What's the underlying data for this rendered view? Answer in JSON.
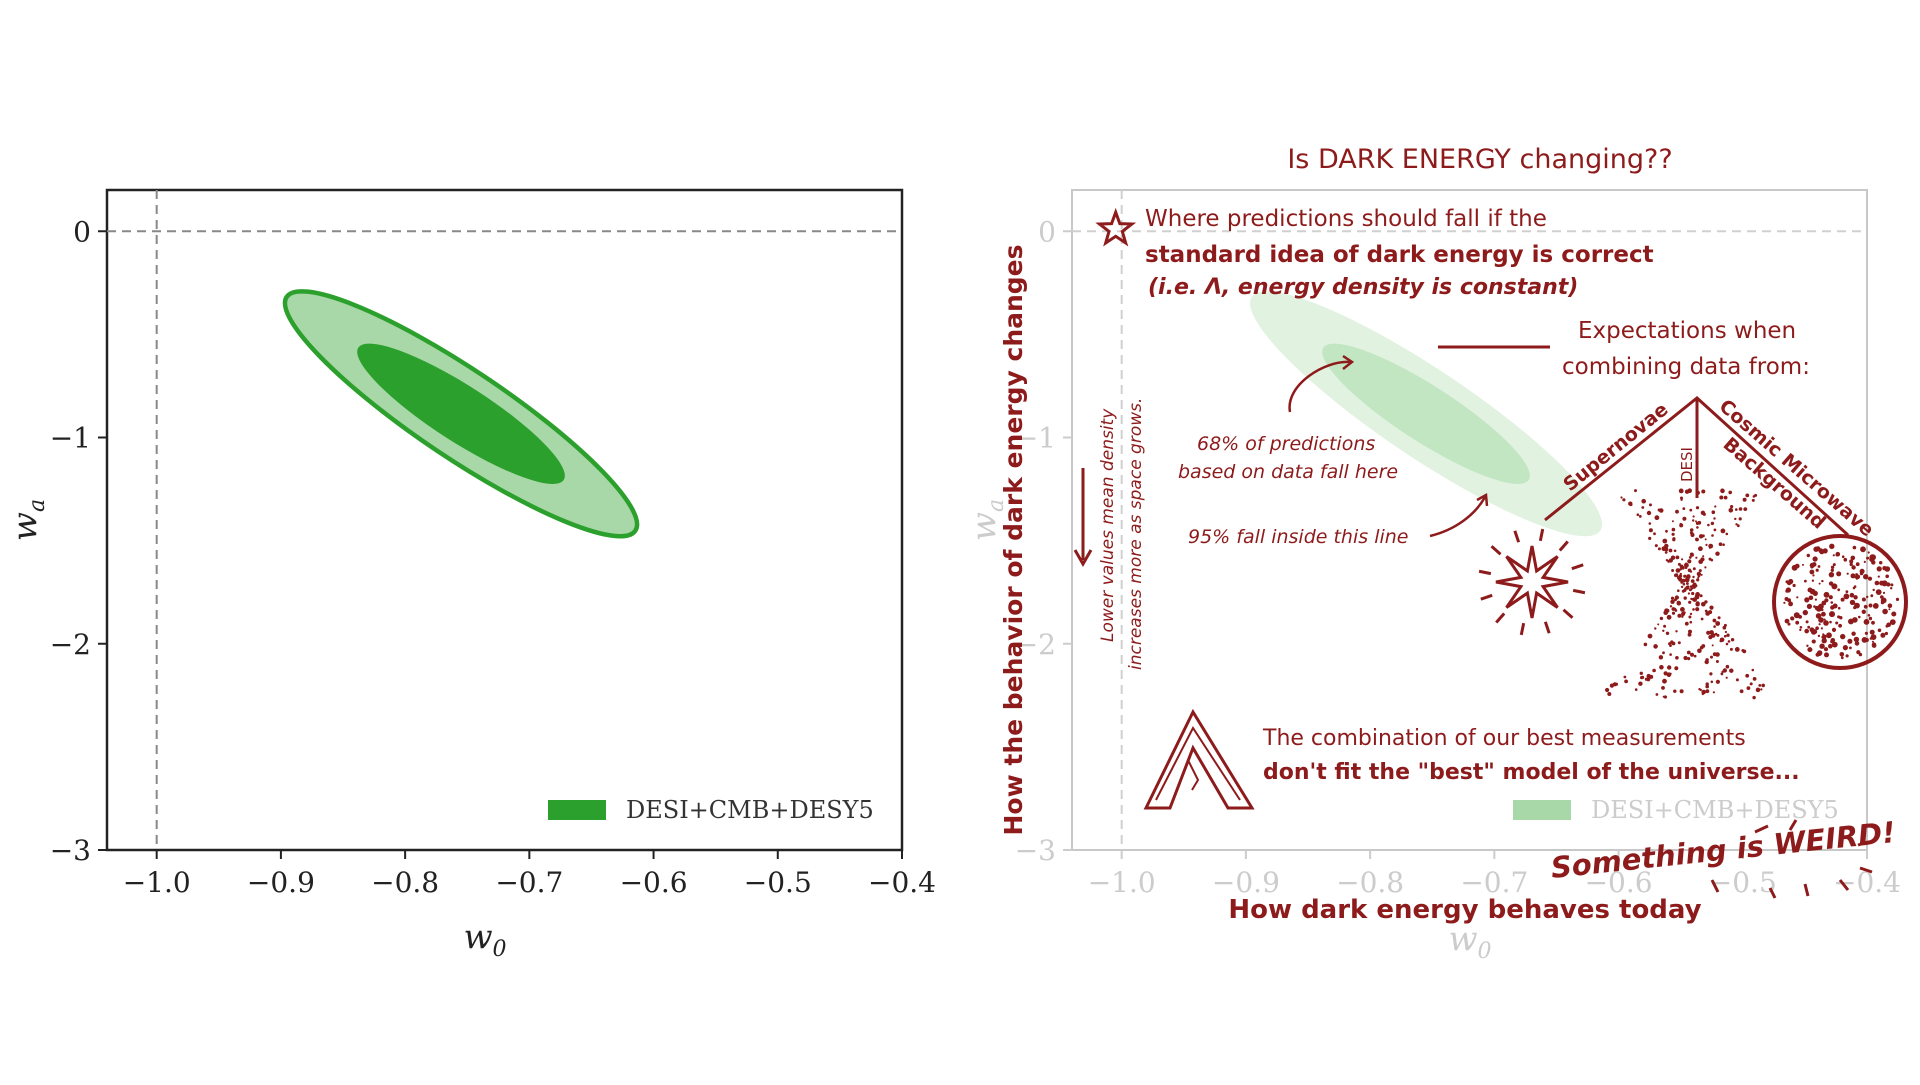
{
  "left_panel": {
    "legend_label": "DESI+CMB+DESY5",
    "xlabel_base": "w",
    "xlabel_sub": "0",
    "ylabel_base": "w",
    "ylabel_sub": "a",
    "x_tick_labels": [
      "−1.0",
      "−0.9",
      "−0.8",
      "−0.7",
      "−0.6",
      "−0.5",
      "−0.4"
    ],
    "y_tick_labels": [
      "0",
      "−1",
      "−2",
      "−3"
    ]
  },
  "right_panel": {
    "title": "Is DARK ENERGY changing??",
    "legend_label": "DESI+CMB+DESY5",
    "xlabel_base": "w",
    "xlabel_sub": "0",
    "ylabel_base": "w",
    "ylabel_sub": "a",
    "hand_xlabel": "How dark energy behaves today",
    "hand_ylabel": "How the behavior of dark energy changes",
    "x_tick_labels": [
      "−1.0",
      "−0.9",
      "−0.8",
      "−0.7",
      "−0.6",
      "−0.5",
      "−0.4"
    ],
    "y_tick_labels": [
      "0",
      "−1",
      "−2",
      "−3"
    ],
    "star_note_line1": "Where predictions should fall if the",
    "star_note_line2": "standard idea of dark energy is correct",
    "star_note_line3": "(i.e. Λ, energy density is constant)",
    "expect_line1": "Expectations when",
    "expect_line2": "combining data from:",
    "branch_supernovae": "Supernovae",
    "branch_desi": "DESI",
    "branch_cmb_line1": "Cosmic Microwave",
    "branch_cmb_line2": "Background",
    "pct68_line1": "68% of predictions",
    "pct68_line2": "based on data fall here",
    "pct95": "95% fall inside this line",
    "lower_line1": "Lower values mean density",
    "lower_line2": "increases more as space grows.",
    "combo_line1": "The combination of our best measurements",
    "combo_line2": "don't fit the \"best\" model of the universe...",
    "weird": "Something is WEIRD!"
  },
  "chart_data": [
    {
      "type": "scatter",
      "title": "",
      "xlabel": "w0",
      "ylabel": "wa",
      "xlim": [
        -1.04,
        -0.4
      ],
      "ylim": [
        -3,
        0.2
      ],
      "reference_lines": {
        "x": -1.0,
        "y": 0
      },
      "grid": false,
      "legend_position": "bottom-right",
      "series": [
        {
          "name": "DESI+CMB+DESY5",
          "kind": "confidence-contours",
          "color": "#2ca02c",
          "center": {
            "x": -0.755,
            "y": -0.885
          },
          "contours": [
            {
              "level": "68%",
              "x_range": [
                -0.835,
                -0.675
              ],
              "y_range": [
                -1.17,
                -0.55
              ]
            },
            {
              "level": "95%",
              "x_range": [
                -0.89,
                -0.62
              ],
              "y_range": [
                -1.42,
                -0.33
              ]
            }
          ]
        }
      ]
    },
    {
      "type": "scatter",
      "title": "Is DARK ENERGY changing??",
      "xlabel": "w0",
      "ylabel": "wa",
      "xlim": [
        -1.04,
        -0.4
      ],
      "ylim": [
        -3,
        0.2
      ],
      "reference_lines": {
        "x": -1.0,
        "y": 0
      },
      "grid": false,
      "legend_position": "bottom-right",
      "marker": {
        "name": "Λ (cosmological constant)",
        "x": -1.0,
        "y": 0
      },
      "series": [
        {
          "name": "DESI+CMB+DESY5",
          "kind": "confidence-contours",
          "color": "#a8d8a8",
          "center": {
            "x": -0.755,
            "y": -0.885
          },
          "contours": [
            {
              "level": "68%",
              "x_range": [
                -0.835,
                -0.675
              ],
              "y_range": [
                -1.17,
                -0.55
              ]
            },
            {
              "level": "95%",
              "x_range": [
                -0.89,
                -0.62
              ],
              "y_range": [
                -1.42,
                -0.33
              ]
            }
          ]
        }
      ]
    }
  ],
  "colors": {
    "green_dark": "#2ca02c",
    "green_fill_inner": "#2ca02c",
    "green_fill_outer": "#a8d8a8",
    "pale_inner": "#bfe5bf",
    "pale_outer": "#dff1df",
    "hand_red": "#8e1b1b",
    "grey_axis": "#c8c8c8"
  }
}
